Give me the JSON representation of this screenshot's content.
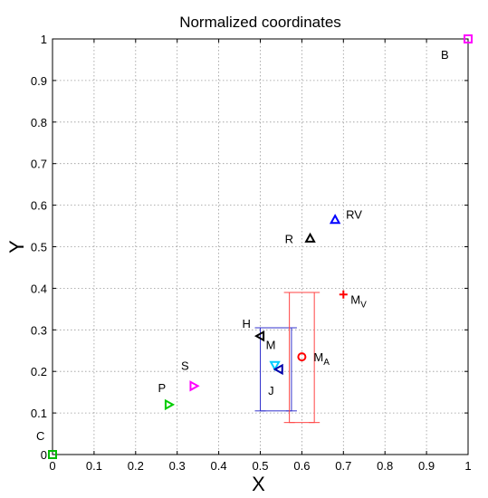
{
  "chart_data": {
    "type": "scatter",
    "title": "Normalized coordinates",
    "xlabel": "X",
    "ylabel": "Y",
    "xlim": [
      0,
      1
    ],
    "ylim": [
      0,
      1
    ],
    "grid": true,
    "x_ticks": [
      "0",
      "0.1",
      "0.2",
      "0.3",
      "0.4",
      "0.5",
      "0.6",
      "0.7",
      "0.8",
      "0.9",
      "1"
    ],
    "y_ticks": [
      "0",
      "0.1",
      "0.2",
      "0.3",
      "0.4",
      "0.5",
      "0.6",
      "0.7",
      "0.8",
      "0.9",
      "1"
    ],
    "points": [
      {
        "label": "B",
        "sub": "",
        "x": 1.0,
        "y": 1.0,
        "marker": "square",
        "color": "#ff00ff"
      },
      {
        "label": "C",
        "sub": "",
        "x": 0.0,
        "y": 0.0,
        "marker": "square",
        "color": "#00bb00"
      },
      {
        "label": "RV",
        "sub": "",
        "x": 0.68,
        "y": 0.565,
        "marker": "triangle-up",
        "color": "#0000ff"
      },
      {
        "label": "R",
        "sub": "",
        "x": 0.62,
        "y": 0.52,
        "marker": "triangle-up",
        "color": "#000000"
      },
      {
        "label": "M",
        "sub": "V",
        "x": 0.7,
        "y": 0.385,
        "marker": "plus",
        "color": "#ff0000"
      },
      {
        "label": "M",
        "sub": "A",
        "x": 0.6,
        "y": 0.235,
        "marker": "circle",
        "color": "#ff0000"
      },
      {
        "label": "H",
        "sub": "",
        "x": 0.5,
        "y": 0.285,
        "marker": "triangle-left",
        "color": "#000000"
      },
      {
        "label": "M",
        "sub": "",
        "x": 0.535,
        "y": 0.215,
        "marker": "triangle-down",
        "color": "#00ccff"
      },
      {
        "label": "J",
        "sub": "",
        "x": 0.545,
        "y": 0.205,
        "marker": "triangle-left",
        "color": "#0000aa"
      },
      {
        "label": "S",
        "sub": "",
        "x": 0.34,
        "y": 0.165,
        "marker": "triangle-right",
        "color": "#ff00ff"
      },
      {
        "label": "P",
        "sub": "",
        "x": 0.28,
        "y": 0.12,
        "marker": "triangle-right",
        "color": "#00cc00"
      }
    ],
    "error_boxes": [
      {
        "for": "J",
        "color": "#3333cc",
        "x_range": [
          0.5,
          0.575
        ],
        "y_range": [
          0.105,
          0.305
        ]
      },
      {
        "for": "M_A",
        "color": "#ff4444",
        "x_range": [
          0.57,
          0.63
        ],
        "y_range": [
          0.077,
          0.39
        ]
      }
    ]
  }
}
